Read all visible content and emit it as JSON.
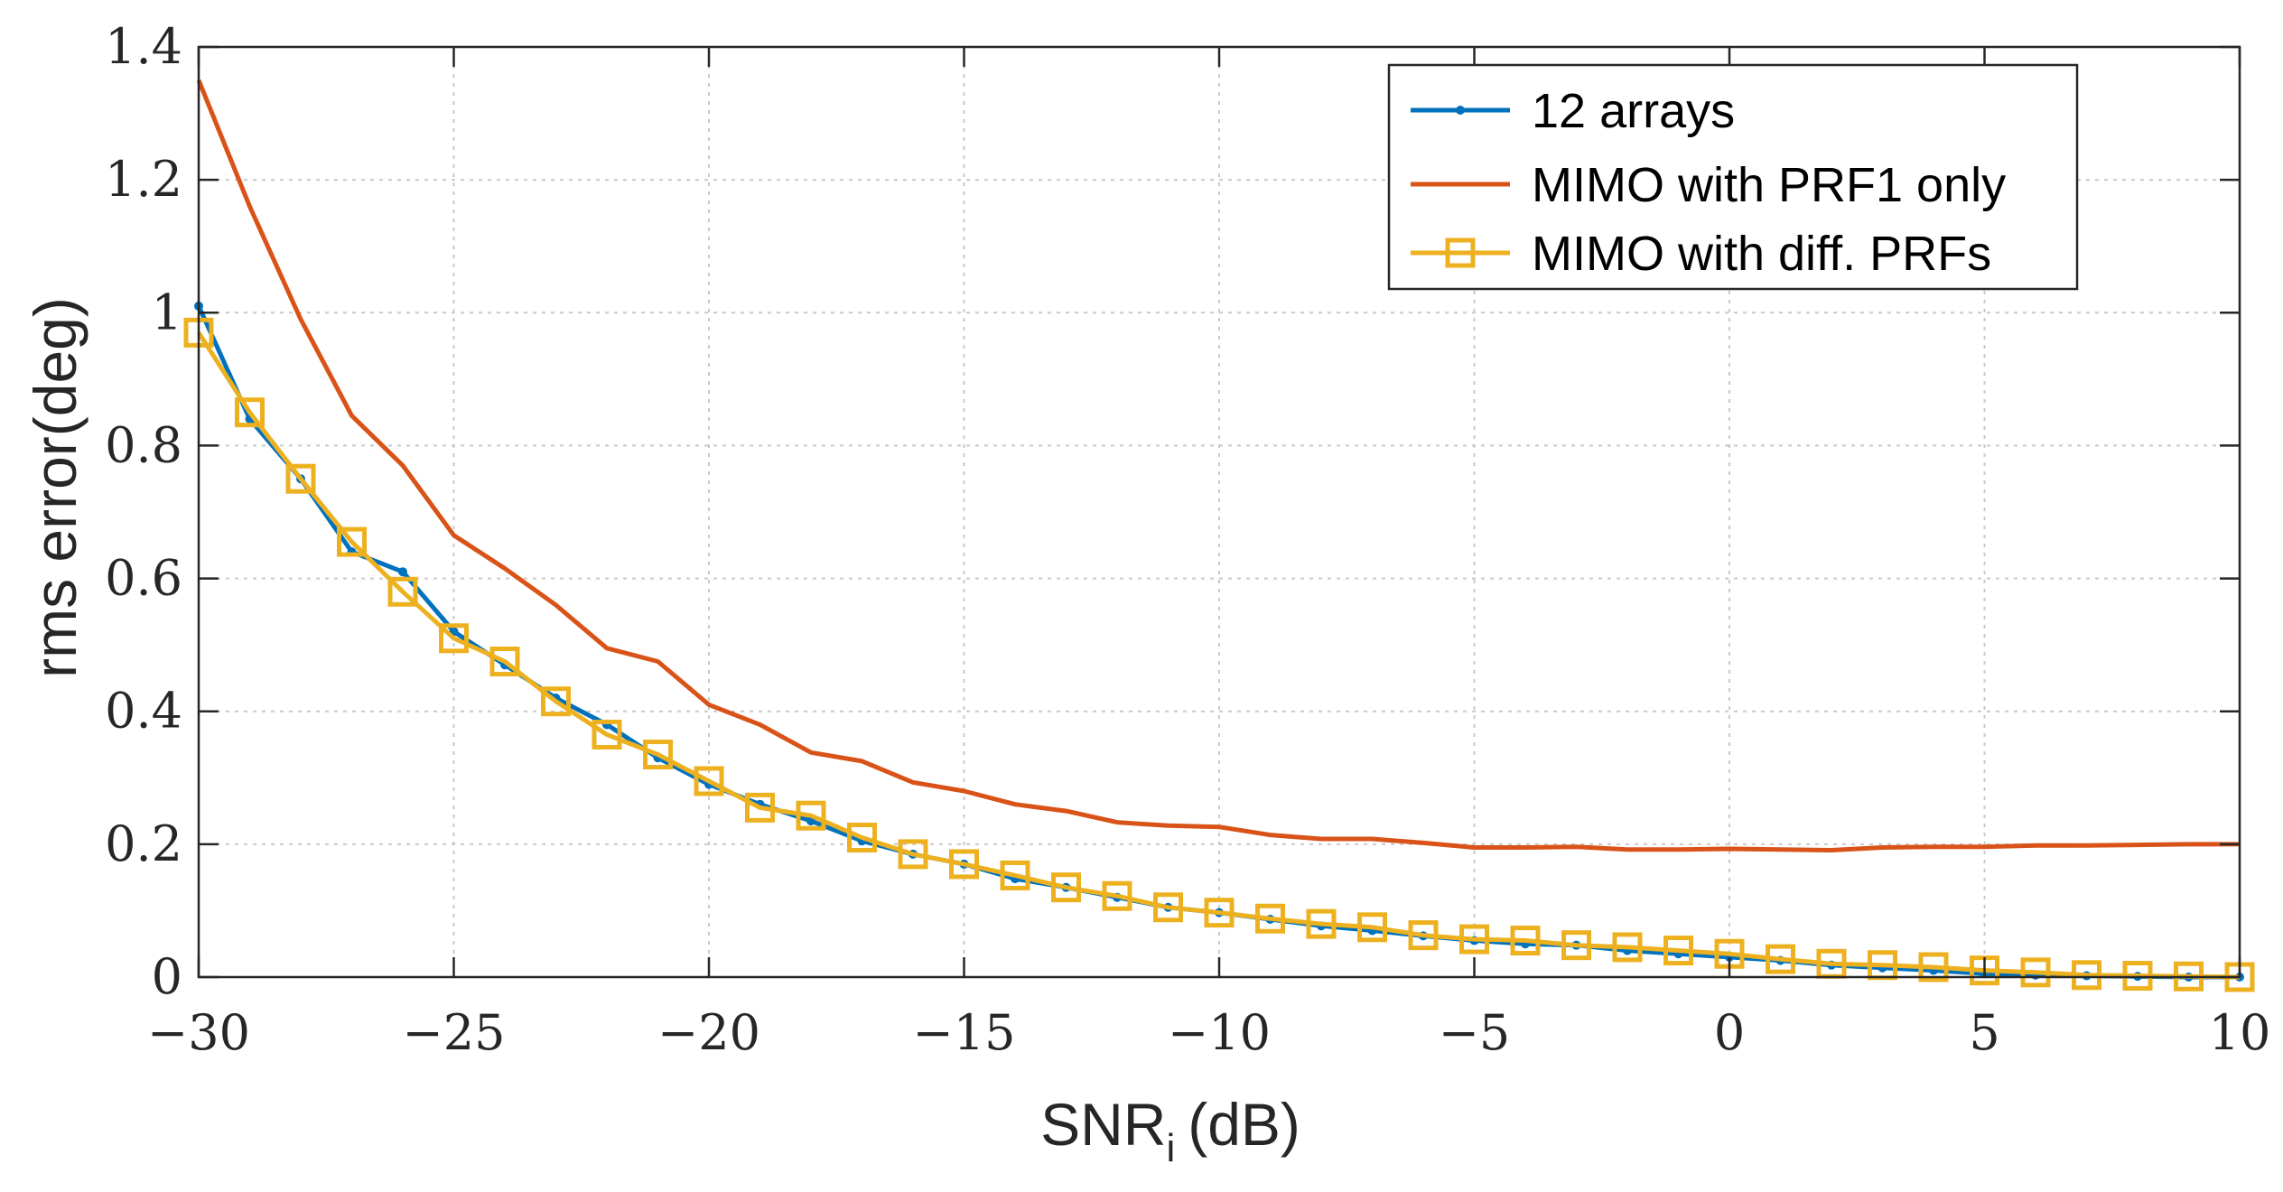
{
  "chart_data": {
    "type": "line",
    "title": "",
    "xlabel": "SNR",
    "xlabel_subscript": "i",
    "xlabel_unit": "(dB)",
    "ylabel": "rms error(deg)",
    "xlim": [
      -30,
      10
    ],
    "ylim": [
      0,
      1.4
    ],
    "grid": true,
    "legend_position": "top-right",
    "x_ticks": [
      -30,
      -25,
      -20,
      -15,
      -10,
      -5,
      0,
      5,
      10
    ],
    "x_tick_labels": [
      "−30",
      "−25",
      "−20",
      "−15",
      "−10",
      "−5",
      "0",
      "5",
      "10"
    ],
    "y_ticks": [
      0,
      0.2,
      0.4,
      0.6,
      0.8,
      1,
      1.2,
      1.4
    ],
    "y_tick_labels": [
      "0",
      "0.2",
      "0.4",
      "0.6",
      "0.8",
      "1",
      "1.2",
      "1.4"
    ],
    "x": [
      -30,
      -29,
      -28,
      -27,
      -26,
      -25,
      -24,
      -23,
      -22,
      -21,
      -20,
      -19,
      -18,
      -17,
      -16,
      -15,
      -14,
      -13,
      -12,
      -11,
      -10,
      -9,
      -8,
      -7,
      -6,
      -5,
      -4,
      -3,
      -2,
      -1,
      0,
      1,
      2,
      3,
      4,
      5,
      6,
      7,
      8,
      9,
      10
    ],
    "series": [
      {
        "name": "12 arrays",
        "color": "#0072BD",
        "marker": "dot",
        "values": [
          1.01,
          0.84,
          0.75,
          0.64,
          0.61,
          0.52,
          0.47,
          0.42,
          0.38,
          0.33,
          0.29,
          0.26,
          0.235,
          0.205,
          0.185,
          0.17,
          0.148,
          0.135,
          0.12,
          0.105,
          0.097,
          0.087,
          0.077,
          0.07,
          0.062,
          0.055,
          0.05,
          0.048,
          0.04,
          0.035,
          0.03,
          0.025,
          0.018,
          0.014,
          0.01,
          0.005,
          0.003,
          0.002,
          0.001,
          0.0,
          0.0
        ]
      },
      {
        "name": "MIMO with PRF1 only",
        "color": "#D95319",
        "marker": "none",
        "values": [
          1.35,
          1.16,
          0.99,
          0.845,
          0.77,
          0.665,
          0.615,
          0.56,
          0.495,
          0.475,
          0.41,
          0.38,
          0.338,
          0.325,
          0.293,
          0.28,
          0.26,
          0.25,
          0.233,
          0.228,
          0.226,
          0.214,
          0.208,
          0.208,
          0.202,
          0.195,
          0.195,
          0.196,
          0.192,
          0.192,
          0.193,
          0.192,
          0.191,
          0.195,
          0.196,
          0.196,
          0.198,
          0.198,
          0.199,
          0.2,
          0.2
        ]
      },
      {
        "name": "MIMO with diff. PRFs",
        "color": "#EDB120",
        "marker": "square",
        "values": [
          0.97,
          0.85,
          0.75,
          0.655,
          0.58,
          0.51,
          0.475,
          0.415,
          0.365,
          0.335,
          0.295,
          0.255,
          0.243,
          0.21,
          0.185,
          0.17,
          0.153,
          0.135,
          0.122,
          0.105,
          0.097,
          0.088,
          0.08,
          0.075,
          0.063,
          0.057,
          0.055,
          0.048,
          0.045,
          0.04,
          0.035,
          0.027,
          0.02,
          0.018,
          0.015,
          0.01,
          0.007,
          0.003,
          0.002,
          0.001,
          0.0
        ]
      }
    ]
  }
}
